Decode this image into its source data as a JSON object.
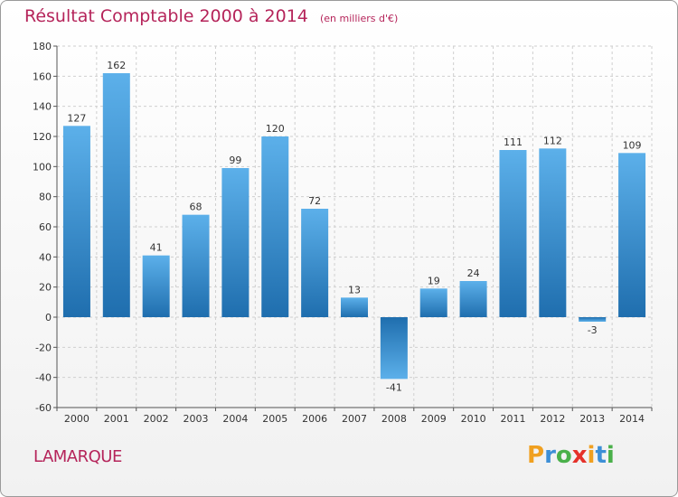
{
  "header": {
    "title": "Résultat Comptable 2000 à 2014",
    "unit": "(en milliers d'€)"
  },
  "footer": {
    "commune": "LAMARQUE",
    "logo_letters": [
      "P",
      "r",
      "o",
      "x",
      "i",
      "t",
      "i"
    ],
    "logo_colors": [
      "#f0a020",
      "#3d8fd6",
      "#4ab04a",
      "#e5312a",
      "#f0a020",
      "#3d8fd6",
      "#4ab04a"
    ]
  },
  "colors": {
    "title": "#b5245a",
    "bar_light": "#5aaee8",
    "bar_dark": "#1f6fb0"
  },
  "chart_data": {
    "type": "bar",
    "title": "Résultat Comptable 2000 à 2014",
    "categories": [
      "2000",
      "2001",
      "2002",
      "2003",
      "2004",
      "2005",
      "2006",
      "2007",
      "2008",
      "2009",
      "2010",
      "2011",
      "2012",
      "2013",
      "2014"
    ],
    "values": [
      127,
      162,
      41,
      68,
      99,
      120,
      72,
      13,
      -41,
      19,
      24,
      111,
      112,
      -3,
      109
    ],
    "ylim": [
      -60,
      180
    ],
    "yticks": [
      180,
      160,
      140,
      120,
      100,
      80,
      60,
      40,
      20,
      0,
      -20,
      -40,
      -60
    ],
    "grid": true,
    "legend": "none"
  }
}
